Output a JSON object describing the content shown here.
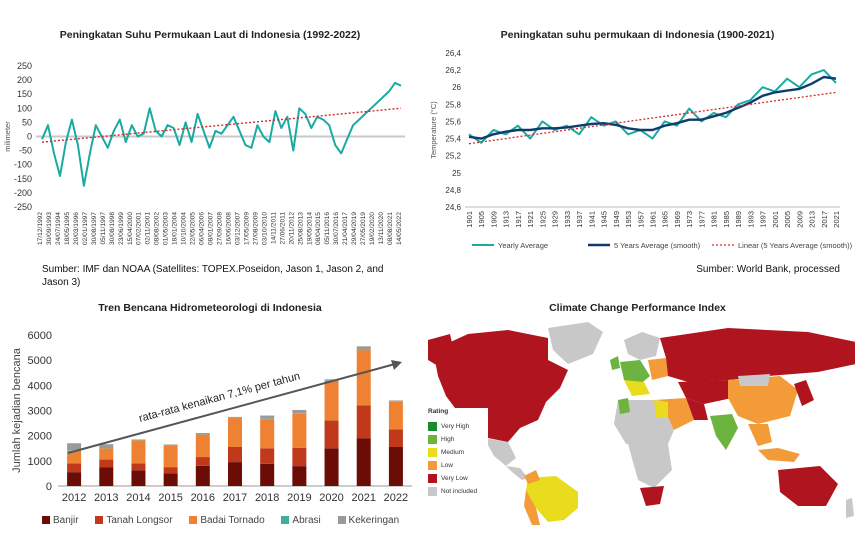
{
  "sea_panel": {
    "title": "Peningkatan Suhu Permukaan Laut di Indonesia (1992-2022)",
    "source": "Sumber: IMF dan NOAA  (Satellites: TOPEX.Poseidon, Jason 1, Jason 2, and Jason 3)",
    "ylabel": "milimeter"
  },
  "temp_panel": {
    "title": "Peningkatan suhu permukaan di Indonesia (1900-2021)",
    "source": "Sumber: World Bank, processed",
    "ylabel": "Temperature (°C)",
    "legend": [
      "Yearly Average",
      "5 Years Average (smooth)",
      "Linear (5 Years Average (smooth))"
    ]
  },
  "disaster_panel": {
    "title": "Tren Bencana Hidrometeorologi di Indonesia",
    "ylabel": "Jumlah kejadian bencana",
    "annotation": "rata-rata kenaikan 7,1% per tahun",
    "legend": [
      "Banjir",
      "Tanah Longsor",
      "Badai Tornado",
      "Abrasi",
      "Kekeringan"
    ]
  },
  "map_panel": {
    "title": "Climate Change Performance Index",
    "legend_title": "Rating",
    "legend": [
      {
        "label": "Very High",
        "color": "#1a8a2e"
      },
      {
        "label": "High",
        "color": "#6cb33f"
      },
      {
        "label": "Medium",
        "color": "#e8dc1c"
      },
      {
        "label": "Low",
        "color": "#f29b38"
      },
      {
        "label": "Very Low",
        "color": "#b0141f"
      },
      {
        "label": "Not included",
        "color": "#c8c8c8"
      }
    ]
  },
  "chart_data": [
    {
      "type": "line",
      "title": "Peningkatan Suhu Permukaan Laut di Indonesia (1992-2022)",
      "ylabel": "milimeter",
      "ylim": [
        -250,
        250
      ],
      "yticks": [
        250,
        200,
        150,
        100,
        50,
        0,
        -50,
        -100,
        -150,
        -200,
        -250
      ],
      "xtick_labels": [
        "17/12/1992",
        "30/09/1993",
        "24/07/1994",
        "18/05/1995",
        "20/03/1996",
        "02/01/1997",
        "30/08/1997",
        "05/11/1997",
        "30/08/1998",
        "23/06/1999",
        "15/04/2000",
        "07/02/2001",
        "02/11/2001",
        "08/08/2002",
        "01/05/2003",
        "18/01/2004",
        "10/10/2004",
        "22/05/2005",
        "06/04/2006",
        "08/01/2007",
        "27/09/2008",
        "16/06/2008",
        "03/12/2007",
        "17/05/2009",
        "27/08/2009",
        "03/10/2010",
        "14/11/2011",
        "27/06/2011",
        "20/11/2012",
        "25/08/2013",
        "19/05/2014",
        "08/04/2015",
        "05/11/2016",
        "30/07/2016",
        "21/04/2017",
        "29/04/2019",
        "27/05/2019",
        "19/02/2020",
        "13/11/2020",
        "08/08/2021",
        "14/05/2022"
      ],
      "series": [
        {
          "values": [
            -10,
            40,
            -60,
            -140,
            -20,
            60,
            -30,
            -175,
            -60,
            40,
            0,
            -40,
            20,
            60,
            -20,
            40,
            0,
            10,
            100,
            20,
            0,
            40,
            30,
            -30,
            50,
            -20,
            80,
            20,
            -40,
            20,
            10,
            40,
            70,
            20,
            -30,
            -40,
            40,
            0,
            -20,
            90,
            30,
            70,
            -50,
            100,
            80,
            30,
            70,
            60,
            40,
            -30,
            -60,
            -10,
            40,
            60,
            80,
            100,
            120,
            140,
            160,
            190,
            180
          ]
        },
        {
          "values": [
            -20,
            -17,
            -14,
            -11,
            -8,
            -5,
            -2,
            1,
            4,
            7,
            10,
            13,
            16,
            19,
            22,
            25,
            28,
            31,
            34,
            37,
            40,
            43,
            46,
            49,
            52,
            55,
            58,
            61,
            64,
            67,
            70,
            73,
            76,
            79,
            82,
            85,
            88,
            91,
            94,
            97,
            100
          ]
        }
      ]
    },
    {
      "type": "line",
      "title": "Peningkatan suhu permukaan di Indonesia (1900-2021)",
      "ylabel": "Temperature (°C)",
      "ylim": [
        24.6,
        26.4
      ],
      "yticks": [
        26.4,
        26.2,
        26.0,
        25.8,
        25.6,
        25.4,
        25.2,
        25.0,
        24.8,
        24.6
      ],
      "x": [
        1901,
        1905,
        1909,
        1913,
        1917,
        1921,
        1925,
        1929,
        1933,
        1937,
        1941,
        1945,
        1949,
        1953,
        1957,
        1961,
        1965,
        1969,
        1973,
        1977,
        1981,
        1985,
        1989,
        1993,
        1997,
        2001,
        2005,
        2009,
        2013,
        2017,
        2021
      ],
      "series": [
        {
          "name": "Yearly Average",
          "values": [
            25.45,
            25.35,
            25.5,
            25.45,
            25.55,
            25.4,
            25.6,
            25.5,
            25.55,
            25.45,
            25.65,
            25.55,
            25.6,
            25.45,
            25.5,
            25.4,
            25.6,
            25.55,
            25.75,
            25.6,
            25.7,
            25.65,
            25.8,
            25.85,
            26.0,
            25.95,
            26.1,
            26.0,
            26.15,
            26.2,
            26.05
          ]
        },
        {
          "name": "5 Years Average (smooth)",
          "values": [
            25.42,
            25.4,
            25.45,
            25.48,
            25.5,
            25.5,
            25.52,
            25.52,
            25.53,
            25.55,
            25.57,
            25.58,
            25.56,
            25.52,
            25.5,
            25.5,
            25.55,
            25.58,
            25.62,
            25.62,
            25.66,
            25.7,
            25.76,
            25.82,
            25.9,
            25.94,
            25.96,
            25.98,
            26.04,
            26.12,
            26.1
          ]
        },
        {
          "name": "Linear (5 Years Average (smooth))",
          "values": [
            25.34,
            25.36,
            25.38,
            25.4,
            25.42,
            25.44,
            25.46,
            25.48,
            25.5,
            25.52,
            25.54,
            25.56,
            25.58,
            25.6,
            25.62,
            25.64,
            25.66,
            25.68,
            25.7,
            25.72,
            25.74,
            25.76,
            25.78,
            25.8,
            25.82,
            25.84,
            25.86,
            25.88,
            25.9,
            25.92,
            25.94
          ]
        }
      ]
    },
    {
      "type": "bar",
      "title": "Tren Bencana Hidrometeorologi di Indonesia",
      "ylabel": "Jumlah kejadian bencana",
      "ylim": [
        0,
        6000
      ],
      "yticks": [
        0,
        1000,
        2000,
        3000,
        4000,
        5000,
        6000
      ],
      "categories": [
        "2012",
        "2013",
        "2014",
        "2015",
        "2016",
        "2017",
        "2018",
        "2019",
        "2020",
        "2021",
        "2022"
      ],
      "series": [
        {
          "name": "Banjir",
          "color": "#6b0c06",
          "values": [
            550,
            750,
            620,
            500,
            800,
            950,
            880,
            790,
            1500,
            1900,
            1550
          ]
        },
        {
          "name": "Tanah Longsor",
          "color": "#c0391b",
          "values": [
            350,
            300,
            280,
            250,
            350,
            600,
            620,
            730,
            1100,
            1300,
            700
          ]
        },
        {
          "name": "Badai Tornado",
          "color": "#ee8232",
          "values": [
            500,
            450,
            920,
            850,
            900,
            1150,
            1150,
            1350,
            1550,
            2200,
            1100
          ]
        },
        {
          "name": "Abrasi",
          "color": "#3fae9a",
          "values": [
            20,
            10,
            10,
            10,
            15,
            15,
            20,
            20,
            30,
            30,
            20
          ]
        },
        {
          "name": "Kekeringan",
          "color": "#9a9a9a",
          "values": [
            280,
            150,
            20,
            40,
            40,
            30,
            130,
            130,
            60,
            120,
            30
          ]
        }
      ]
    }
  ]
}
